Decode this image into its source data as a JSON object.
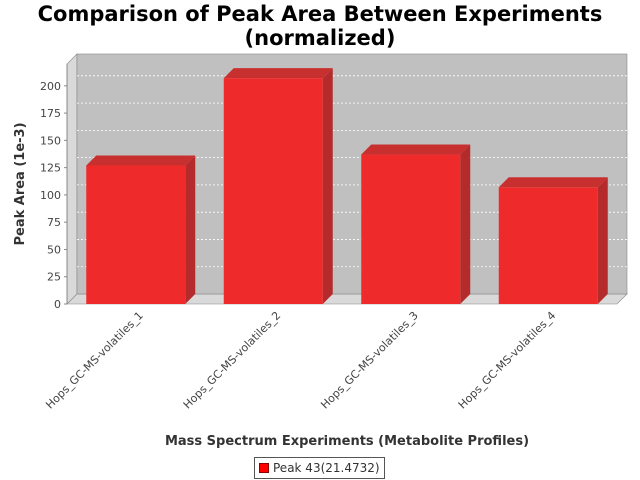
{
  "chart_data": {
    "type": "bar",
    "title_line1": "Comparison of Peak Area Between Experiments",
    "title_line2": "(normalized)",
    "xlabel": "Mass Spectrum Experiments (Metabolite Profiles)",
    "ylabel": "Peak Area (1e-3)",
    "categories": [
      "Hops_GC-MS-volatiles_1",
      "Hops_GC-MS-volatiles_2",
      "Hops_GC-MS-volatiles_3",
      "Hops_GC-MS-volatiles_4"
    ],
    "series": [
      {
        "name": "Peak 43(21.4732)",
        "values": [
          127,
          207,
          137,
          107
        ]
      }
    ],
    "ylim": [
      0,
      220
    ],
    "yticks": [
      "0",
      "25",
      "50",
      "75",
      "100",
      "125",
      "150",
      "175",
      "200"
    ],
    "grid": true,
    "legend": "bottom",
    "colors": {
      "bar": "#ee2a2a",
      "bar_side": "#b52a2a",
      "bar_top": "#c83030",
      "plot_bg": "#c0c0c0",
      "wall": "#d9d9d9"
    }
  }
}
